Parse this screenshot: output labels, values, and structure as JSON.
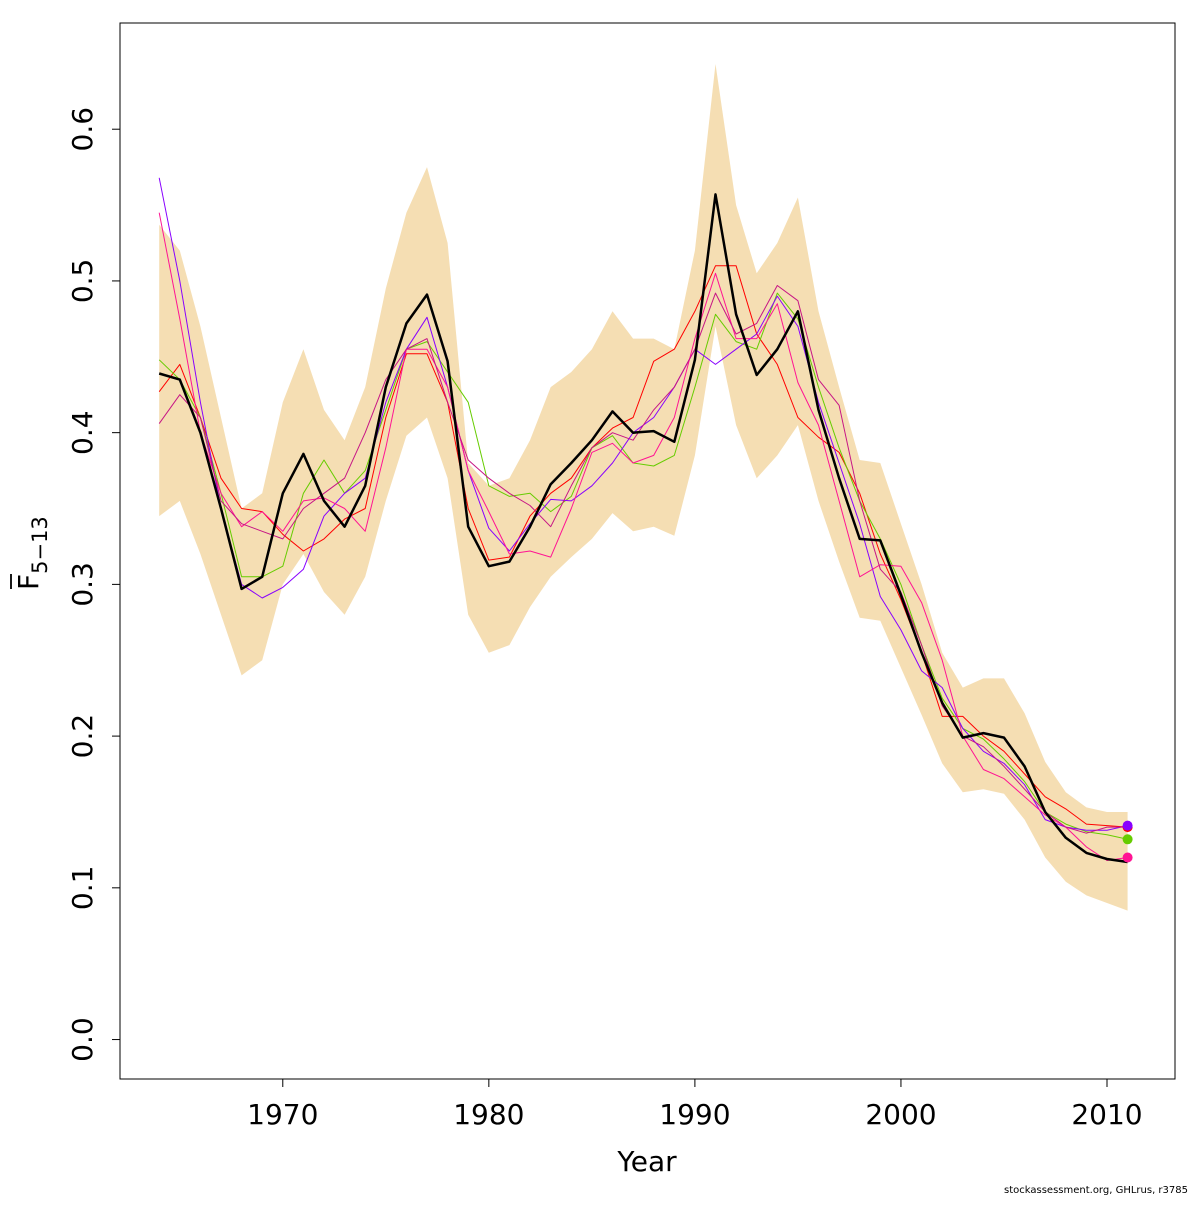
{
  "chart_data": {
    "type": "line",
    "xlabel": "Year",
    "ylabel_main": "F",
    "ylabel_sub": "5−13",
    "xlim": [
      1962.1,
      2013.3
    ],
    "ylim": [
      -0.026,
      0.67
    ],
    "xticks": [
      "1970",
      "1980",
      "1990",
      "2000",
      "2010"
    ],
    "yticks": [
      "0.0",
      "0.1",
      "0.2",
      "0.3",
      "0.4",
      "0.5",
      "0.6"
    ],
    "grid": false,
    "legend": "none",
    "band_color": "#f5deb3",
    "band_x": [
      1964,
      1965,
      1966,
      1967,
      1968,
      1969,
      1970,
      1971,
      1972,
      1973,
      1974,
      1975,
      1976,
      1977,
      1978,
      1979,
      1980,
      1981,
      1982,
      1983,
      1984,
      1985,
      1986,
      1987,
      1988,
      1989,
      1990,
      1991,
      1992,
      1993,
      1994,
      1995,
      1996,
      1997,
      1998,
      1999,
      2000,
      2001,
      2002,
      2003,
      2004,
      2005,
      2006,
      2007,
      2008,
      2009,
      2010,
      2011
    ],
    "band_upper": [
      0.537,
      0.52,
      0.47,
      0.41,
      0.35,
      0.36,
      0.42,
      0.455,
      0.415,
      0.395,
      0.43,
      0.495,
      0.545,
      0.575,
      0.525,
      0.38,
      0.365,
      0.37,
      0.395,
      0.43,
      0.44,
      0.455,
      0.48,
      0.462,
      0.462,
      0.455,
      0.52,
      0.643,
      0.55,
      0.505,
      0.525,
      0.555,
      0.48,
      0.43,
      0.382,
      0.38,
      0.34,
      0.3,
      0.255,
      0.232,
      0.238,
      0.238,
      0.215,
      0.183,
      0.163,
      0.153,
      0.15,
      0.15
    ],
    "band_lower": [
      0.345,
      0.355,
      0.32,
      0.28,
      0.24,
      0.25,
      0.3,
      0.32,
      0.295,
      0.28,
      0.305,
      0.355,
      0.398,
      0.41,
      0.37,
      0.28,
      0.255,
      0.26,
      0.285,
      0.305,
      0.318,
      0.33,
      0.347,
      0.335,
      0.338,
      0.332,
      0.385,
      0.47,
      0.405,
      0.37,
      0.385,
      0.405,
      0.355,
      0.315,
      0.278,
      0.276,
      0.245,
      0.214,
      0.182,
      0.163,
      0.165,
      0.162,
      0.145,
      0.12,
      0.104,
      0.095,
      0.09,
      0.085
    ],
    "series": [
      {
        "color": "#000000",
        "width": 2.5,
        "x": [
          1964,
          1965,
          1966,
          1967,
          1968,
          1969,
          1970,
          1971,
          1972,
          1973,
          1974,
          1975,
          1976,
          1977,
          1978,
          1979,
          1980,
          1981,
          1982,
          1983,
          1984,
          1985,
          1986,
          1987,
          1988,
          1989,
          1990,
          1991,
          1992,
          1993,
          1994,
          1995,
          1996,
          1997,
          1998,
          1999,
          2000,
          2001,
          2002,
          2003,
          2004,
          2005,
          2006,
          2007,
          2008,
          2009,
          2010,
          2011
        ],
        "y": [
          0.439,
          0.435,
          0.4,
          0.35,
          0.297,
          0.305,
          0.36,
          0.386,
          0.355,
          0.338,
          0.365,
          0.43,
          0.472,
          0.491,
          0.447,
          0.338,
          0.312,
          0.315,
          0.338,
          0.366,
          0.38,
          0.395,
          0.414,
          0.4,
          0.401,
          0.394,
          0.448,
          0.557,
          0.478,
          0.438,
          0.455,
          0.48,
          0.415,
          0.37,
          0.33,
          0.329,
          0.293,
          0.255,
          0.222,
          0.199,
          0.202,
          0.199,
          0.18,
          0.15,
          0.133,
          0.123,
          0.119,
          0.117
        ]
      },
      {
        "color": "#ff0000",
        "width": 1,
        "marker": true,
        "x": [
          1964,
          1965,
          1966,
          1967,
          1968,
          1969,
          1970,
          1971,
          1972,
          1973,
          1974,
          1975,
          1976,
          1977,
          1978,
          1979,
          1980,
          1981,
          1982,
          1983,
          1984,
          1985,
          1986,
          1987,
          1988,
          1989,
          1990,
          1991,
          1992,
          1993,
          1994,
          1995,
          1996,
          1997,
          1998,
          1999,
          2000,
          2001,
          2002,
          2003,
          2004,
          2005,
          2006,
          2007,
          2008,
          2009,
          2010,
          2011
        ],
        "y": [
          0.427,
          0.445,
          0.41,
          0.37,
          0.35,
          0.348,
          0.333,
          0.322,
          0.33,
          0.343,
          0.35,
          0.41,
          0.452,
          0.452,
          0.42,
          0.35,
          0.316,
          0.318,
          0.345,
          0.36,
          0.37,
          0.39,
          0.403,
          0.41,
          0.447,
          0.455,
          0.48,
          0.51,
          0.51,
          0.465,
          0.445,
          0.41,
          0.397,
          0.387,
          0.36,
          0.32,
          0.29,
          0.255,
          0.213,
          0.213,
          0.2,
          0.19,
          0.175,
          0.16,
          0.152,
          0.142,
          0.141,
          0.14
        ]
      },
      {
        "color": "#66cc00",
        "width": 1,
        "marker": true,
        "x": [
          1964,
          1965,
          1966,
          1967,
          1968,
          1969,
          1970,
          1971,
          1972,
          1973,
          1974,
          1975,
          1976,
          1977,
          1978,
          1979,
          1980,
          1981,
          1982,
          1983,
          1984,
          1985,
          1986,
          1987,
          1988,
          1989,
          1990,
          1991,
          1992,
          1993,
          1994,
          1995,
          1996,
          1997,
          1998,
          1999,
          2000,
          2001,
          2002,
          2003,
          2004,
          2005,
          2006,
          2007,
          2008,
          2009,
          2010,
          2011
        ],
        "y": [
          0.448,
          0.435,
          0.41,
          0.36,
          0.305,
          0.305,
          0.312,
          0.36,
          0.382,
          0.36,
          0.375,
          0.415,
          0.455,
          0.46,
          0.44,
          0.42,
          0.365,
          0.358,
          0.36,
          0.348,
          0.358,
          0.39,
          0.398,
          0.38,
          0.378,
          0.385,
          0.43,
          0.478,
          0.46,
          0.455,
          0.492,
          0.475,
          0.43,
          0.39,
          0.355,
          0.33,
          0.3,
          0.26,
          0.225,
          0.205,
          0.198,
          0.185,
          0.17,
          0.15,
          0.142,
          0.137,
          0.135,
          0.132
        ]
      },
      {
        "color": "#8800ff",
        "width": 1,
        "marker": true,
        "x": [
          1964,
          1965,
          1966,
          1967,
          1968,
          1969,
          1970,
          1971,
          1972,
          1973,
          1974,
          1975,
          1976,
          1977,
          1978,
          1979,
          1980,
          1981,
          1982,
          1983,
          1984,
          1985,
          1986,
          1987,
          1988,
          1989,
          1990,
          1991,
          1992,
          1993,
          1994,
          1995,
          1996,
          1997,
          1998,
          1999,
          2000,
          2001,
          2002,
          2003,
          2004,
          2005,
          2006,
          2007,
          2008,
          2009,
          2010,
          2011
        ],
        "y": [
          0.568,
          0.5,
          0.42,
          0.35,
          0.3,
          0.291,
          0.298,
          0.31,
          0.345,
          0.36,
          0.37,
          0.42,
          0.455,
          0.476,
          0.43,
          0.375,
          0.337,
          0.322,
          0.34,
          0.356,
          0.355,
          0.365,
          0.38,
          0.4,
          0.41,
          0.43,
          0.455,
          0.445,
          0.455,
          0.465,
          0.49,
          0.47,
          0.42,
          0.38,
          0.34,
          0.292,
          0.27,
          0.243,
          0.232,
          0.205,
          0.19,
          0.182,
          0.168,
          0.145,
          0.14,
          0.138,
          0.138,
          0.141
        ]
      },
      {
        "color": "#ff1493",
        "width": 1,
        "marker": true,
        "x": [
          1964,
          1965,
          1966,
          1967,
          1968,
          1969,
          1970,
          1971,
          1972,
          1973,
          1974,
          1975,
          1976,
          1977,
          1978,
          1979,
          1980,
          1981,
          1982,
          1983,
          1984,
          1985,
          1986,
          1987,
          1988,
          1989,
          1990,
          1991,
          1992,
          1993,
          1994,
          1995,
          1996,
          1997,
          1998,
          1999,
          2000,
          2001,
          2002,
          2003,
          2004,
          2005,
          2006,
          2007,
          2008,
          2009,
          2010,
          2011
        ],
        "y": [
          0.545,
          0.475,
          0.4,
          0.36,
          0.338,
          0.348,
          0.335,
          0.355,
          0.357,
          0.35,
          0.335,
          0.39,
          0.455,
          0.455,
          0.43,
          0.375,
          0.348,
          0.32,
          0.322,
          0.318,
          0.35,
          0.387,
          0.393,
          0.38,
          0.385,
          0.41,
          0.462,
          0.505,
          0.462,
          0.462,
          0.485,
          0.433,
          0.405,
          0.355,
          0.305,
          0.313,
          0.312,
          0.288,
          0.25,
          0.2,
          0.178,
          0.172,
          0.16,
          0.148,
          0.14,
          0.127,
          0.118,
          0.12
        ]
      },
      {
        "color": "#c71585",
        "width": 1,
        "marker": false,
        "x": [
          1964,
          1965,
          1966,
          1967,
          1968,
          1969,
          1970,
          1971,
          1972,
          1973,
          1974,
          1975,
          1976,
          1977,
          1978,
          1979,
          1980,
          1981,
          1982,
          1983,
          1984,
          1985,
          1986,
          1987,
          1988,
          1989,
          1990,
          1991,
          1992,
          1993,
          1994,
          1995,
          1996,
          1997,
          1998,
          1999,
          2000,
          2001,
          2002,
          2003,
          2004,
          2005,
          2006,
          2007,
          2008,
          2009,
          2010,
          2011
        ],
        "y": [
          0.406,
          0.425,
          0.41,
          0.355,
          0.34,
          0.335,
          0.33,
          0.35,
          0.36,
          0.37,
          0.4,
          0.435,
          0.455,
          0.462,
          0.42,
          0.382,
          0.37,
          0.36,
          0.352,
          0.338,
          0.365,
          0.39,
          0.4,
          0.395,
          0.415,
          0.43,
          0.455,
          0.492,
          0.465,
          0.472,
          0.497,
          0.487,
          0.435,
          0.418,
          0.355,
          0.31,
          0.295,
          0.26,
          0.22,
          0.2,
          0.193,
          0.18,
          0.165,
          0.15,
          0.14,
          0.136,
          0.14,
          0.14
        ]
      }
    ]
  },
  "footer": "stockassessment.org, GHLrus, r3785"
}
